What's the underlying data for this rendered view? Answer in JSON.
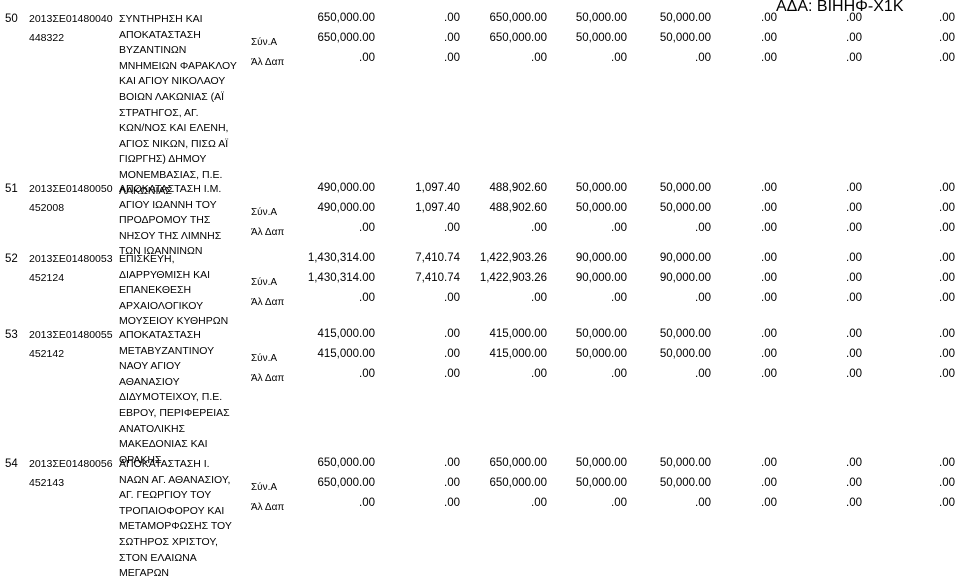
{
  "ada": "ΑΔΑ: ΒΙΗΗΦ-Χ1Κ",
  "row_labels": [
    "Σύν.Α",
    "Άλ Δαπ"
  ],
  "entries": [
    {
      "no": "50",
      "code": "2013ΣΕ01480040",
      "sub": "448322",
      "desc": [
        "ΣΥΝΤΗΡΗΣΗ ΚΑΙ",
        "ΑΠΟΚΑΤΑΣΤΑΣΗ",
        "ΒΥΖΑΝΤΙΝΩΝ",
        "ΜΝΗΜΕΙΩΝ ΦΑΡΑΚΛΟΥ",
        "ΚΑΙ ΑΓΙΟΥ ΝΙΚΟΛΑΟΥ",
        "ΒΟΙΩΝ ΛΑΚΩΝΙΑΣ (ΑΪ",
        "ΣΤΡΑΤΗΓΟΣ, ΑΓ.",
        "ΚΩΝ/ΝΟΣ ΚΑΙ ΕΛΕΝΗ,",
        "ΑΓΙΟΣ ΝΙΚΩΝ, ΠΙΣΩ ΑΪ",
        "ΓΙΩΡΓΗΣ) ΔΗΜΟΥ",
        "ΜΟΝΕΜΒΑΣΙΑΣ, Π.Ε.",
        "ΛΑΚΩΝΙΑΣ"
      ],
      "rows": [
        [
          "650,000.00",
          ".00",
          "650,000.00",
          "50,000.00",
          "50,000.00",
          ".00",
          ".00",
          ".00"
        ],
        [
          "650,000.00",
          ".00",
          "650,000.00",
          "50,000.00",
          "50,000.00",
          ".00",
          ".00",
          ".00"
        ],
        [
          ".00",
          ".00",
          ".00",
          ".00",
          ".00",
          ".00",
          ".00",
          ".00"
        ]
      ]
    },
    {
      "no": "51",
      "code": "2013ΣΕ01480050",
      "sub": "452008",
      "desc": [
        "ΑΠΟΚΑΤΑΣΤΑΣΗ Ι.Μ.",
        "ΑΓΙΟΥ ΙΩΑΝΝΗ ΤΟΥ",
        "ΠΡΟΔΡΟΜΟΥ ΤΗΣ",
        "ΝΗΣΟΥ ΤΗΣ ΛΙΜΝΗΣ",
        "ΤΩΝ ΙΩΑΝΝΙΝΩΝ"
      ],
      "rows": [
        [
          "490,000.00",
          "1,097.40",
          "488,902.60",
          "50,000.00",
          "50,000.00",
          ".00",
          ".00",
          ".00"
        ],
        [
          "490,000.00",
          "1,097.40",
          "488,902.60",
          "50,000.00",
          "50,000.00",
          ".00",
          ".00",
          ".00"
        ],
        [
          ".00",
          ".00",
          ".00",
          ".00",
          ".00",
          ".00",
          ".00",
          ".00"
        ]
      ]
    },
    {
      "no": "52",
      "code": "2013ΣΕ01480053",
      "sub": "452124",
      "desc": [
        "ΕΠΙΣΚΕΥΗ,",
        "ΔΙΑΡΡΥΘΜΙΣΗ ΚΑΙ",
        "ΕΠΑΝΕΚΘΕΣΗ",
        "ΑΡΧΑΙΟΛΟΓΙΚΟΥ",
        "ΜΟΥΣΕΙΟΥ ΚΥΘΗΡΩΝ"
      ],
      "rows": [
        [
          "1,430,314.00",
          "7,410.74",
          "1,422,903.26",
          "90,000.00",
          "90,000.00",
          ".00",
          ".00",
          ".00"
        ],
        [
          "1,430,314.00",
          "7,410.74",
          "1,422,903.26",
          "90,000.00",
          "90,000.00",
          ".00",
          ".00",
          ".00"
        ],
        [
          ".00",
          ".00",
          ".00",
          ".00",
          ".00",
          ".00",
          ".00",
          ".00"
        ]
      ]
    },
    {
      "no": "53",
      "code": "2013ΣΕ01480055",
      "sub": "452142",
      "desc": [
        "ΑΠΟΚΑΤΑΣΤΑΣΗ",
        "ΜΕΤΑΒΥΖΑΝΤΙΝΟΥ",
        "ΝΑΟΥ ΑΓΙΟΥ",
        "ΑΘΑΝΑΣΙΟΥ",
        "ΔΙΔΥΜΟΤΕΙΧΟΥ, Π.Ε.",
        "ΕΒΡΟΥ, ΠΕΡΙΦΕΡΕΙΑΣ",
        "ΑΝΑΤΟΛΙΚΗΣ",
        "ΜΑΚΕΔΟΝΙΑΣ ΚΑΙ",
        "ΘΡΑΚΗΣ"
      ],
      "rows": [
        [
          "415,000.00",
          ".00",
          "415,000.00",
          "50,000.00",
          "50,000.00",
          ".00",
          ".00",
          ".00"
        ],
        [
          "415,000.00",
          ".00",
          "415,000.00",
          "50,000.00",
          "50,000.00",
          ".00",
          ".00",
          ".00"
        ],
        [
          ".00",
          ".00",
          ".00",
          ".00",
          ".00",
          ".00",
          ".00",
          ".00"
        ]
      ]
    },
    {
      "no": "54",
      "code": "2013ΣΕ01480056",
      "sub": "452143",
      "desc": [
        "ΑΠΟΚΑΤΑΣΤΑΣΗ Ι.",
        "ΝΑΩΝ ΑΓ. ΑΘΑΝΑΣΙΟΥ,",
        "ΑΓ. ΓΕΩΡΓΙΟΥ ΤΟΥ",
        "ΤΡΟΠΑΙΟΦΟΡΟΥ ΚΑΙ",
        "ΜΕΤΑΜΟΡΦΩΣΗΣ ΤΟΥ",
        "ΣΩΤΗΡΟΣ ΧΡΙΣΤΟΥ,",
        "ΣΤΟΝ ΕΛΑΙΩΝΑ",
        "ΜΕΓΑΡΩΝ"
      ],
      "rows": [
        [
          "650,000.00",
          ".00",
          "650,000.00",
          "50,000.00",
          "50,000.00",
          ".00",
          ".00",
          ".00"
        ],
        [
          "650,000.00",
          ".00",
          "650,000.00",
          "50,000.00",
          "50,000.00",
          ".00",
          ".00",
          ".00"
        ],
        [
          ".00",
          ".00",
          ".00",
          ".00",
          ".00",
          ".00",
          ".00",
          ".00"
        ]
      ]
    }
  ]
}
